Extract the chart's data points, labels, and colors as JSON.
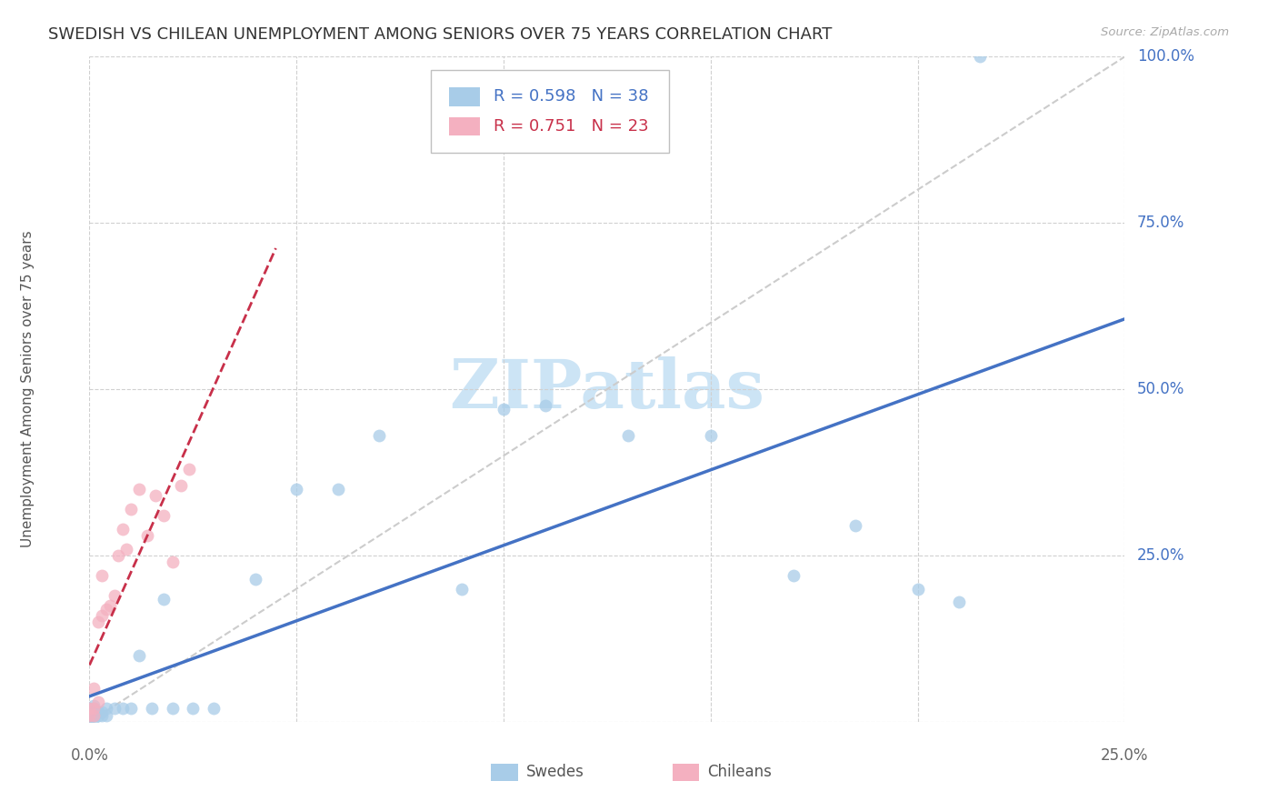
{
  "title": "SWEDISH VS CHILEAN UNEMPLOYMENT AMONG SENIORS OVER 75 YEARS CORRELATION CHART",
  "source": "Source: ZipAtlas.com",
  "ylabel": "Unemployment Among Seniors over 75 years",
  "xlim": [
    0.0,
    0.25
  ],
  "ylim": [
    0.0,
    1.0
  ],
  "swedes_R": 0.598,
  "swedes_N": 38,
  "chileans_R": 0.751,
  "chileans_N": 23,
  "swede_color": "#a8cce8",
  "chilean_color": "#f4b0c0",
  "swede_line_color": "#4472c4",
  "chilean_line_color": "#c8304a",
  "grid_color": "#d0d0d0",
  "ref_line_color": "#cccccc",
  "watermark_text": "ZIPatlas",
  "swedes_x": [
    0.0,
    0.0,
    0.0,
    0.0,
    0.001,
    0.001,
    0.001,
    0.001,
    0.001,
    0.002,
    0.002,
    0.003,
    0.003,
    0.004,
    0.004,
    0.006,
    0.008,
    0.01,
    0.012,
    0.015,
    0.018,
    0.02,
    0.025,
    0.03,
    0.04,
    0.05,
    0.06,
    0.07,
    0.09,
    0.1,
    0.11,
    0.13,
    0.15,
    0.17,
    0.185,
    0.2,
    0.21,
    0.215
  ],
  "swedes_y": [
    0.02,
    0.015,
    0.01,
    0.005,
    0.02,
    0.015,
    0.01,
    0.005,
    0.025,
    0.015,
    0.01,
    0.015,
    0.01,
    0.02,
    0.01,
    0.02,
    0.02,
    0.02,
    0.1,
    0.02,
    0.185,
    0.02,
    0.02,
    0.02,
    0.215,
    0.35,
    0.35,
    0.43,
    0.2,
    0.47,
    0.475,
    0.43,
    0.43,
    0.22,
    0.295,
    0.2,
    0.18,
    1.0
  ],
  "chileans_x": [
    0.0,
    0.0,
    0.001,
    0.001,
    0.001,
    0.002,
    0.002,
    0.003,
    0.003,
    0.004,
    0.005,
    0.006,
    0.007,
    0.008,
    0.009,
    0.01,
    0.012,
    0.014,
    0.016,
    0.018,
    0.02,
    0.022,
    0.024
  ],
  "chileans_y": [
    0.01,
    0.02,
    0.01,
    0.02,
    0.05,
    0.03,
    0.15,
    0.16,
    0.22,
    0.17,
    0.175,
    0.19,
    0.25,
    0.29,
    0.26,
    0.32,
    0.35,
    0.28,
    0.34,
    0.31,
    0.24,
    0.355,
    0.38
  ],
  "title_fontsize": 13,
  "axis_label_fontsize": 11,
  "tick_label_fontsize": 12,
  "legend_fontsize": 13,
  "marker_size": 100
}
